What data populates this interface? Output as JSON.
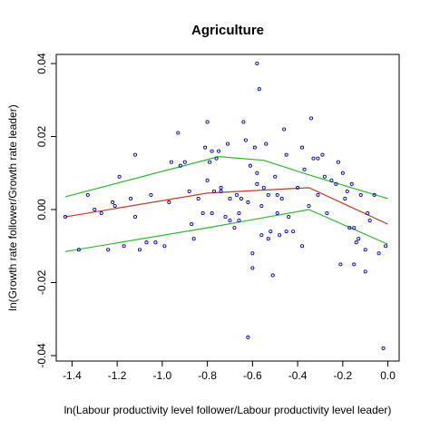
{
  "chart_data": {
    "type": "scatter",
    "title": "Agriculture",
    "xlabel": "ln(Labour productivity level follower/Labour productivity level leader)",
    "ylabel": "ln(Growth rate follower/Growth rate leader)",
    "xlim": [
      -1.47,
      0.05
    ],
    "ylim": [
      -0.0415,
      0.0425
    ],
    "x_ticks": [
      -1.4,
      -1.2,
      -1.0,
      -0.8,
      -0.6,
      -0.4,
      -0.2,
      0.0
    ],
    "x_tick_labels": [
      "-1.4",
      "-1.2",
      "-1.0",
      "-0.8",
      "-0.6",
      "-0.4",
      "-0.2",
      "0.0"
    ],
    "y_ticks": [
      -0.04,
      -0.02,
      0.0,
      0.02,
      0.04
    ],
    "y_tick_labels": [
      "-0.04",
      "-0.02",
      "0.00",
      "0.02",
      "0.04"
    ],
    "grid": false,
    "colors": {
      "points": "#0000cc",
      "fit": "#c0392b",
      "bounds": "#2eb82e",
      "frame": "#000000"
    },
    "points": {
      "x": [
        -1.43,
        -1.37,
        -1.33,
        -1.3,
        -1.27,
        -1.24,
        -1.22,
        -1.19,
        -1.17,
        -1.14,
        -1.12,
        -1.1,
        -1.07,
        -1.05,
        -1.03,
        -0.99,
        -0.97,
        -0.93,
        -0.92,
        -0.9,
        -0.88,
        -0.86,
        -0.84,
        -0.82,
        -0.81,
        -0.8,
        -0.79,
        -0.78,
        -0.77,
        -0.76,
        -0.75,
        -0.74,
        -0.72,
        -0.71,
        -0.7,
        -0.68,
        -0.67,
        -0.66,
        -0.65,
        -0.64,
        -0.63,
        -0.62,
        -0.61,
        -0.6,
        -0.59,
        -0.58,
        -0.57,
        -0.56,
        -0.55,
        -0.54,
        -0.53,
        -0.52,
        -0.51,
        -0.5,
        -0.49,
        -0.48,
        -0.47,
        -0.46,
        -0.45,
        -0.44,
        -0.42,
        -0.4,
        -0.38,
        -0.37,
        -0.35,
        -0.34,
        -0.33,
        -0.31,
        -0.29,
        -0.27,
        -0.25,
        -0.23,
        -0.22,
        -0.21,
        -0.2,
        -0.19,
        -0.18,
        -0.17,
        -0.16,
        -0.15,
        -0.14,
        -0.13,
        -0.12,
        -0.1,
        -0.09,
        -0.08,
        -0.06,
        -0.04,
        -0.02,
        -0.01,
        -0.8,
        -0.78,
        -0.74,
        -0.7,
        -0.6,
        -0.58,
        -0.53,
        -0.49,
        -0.45,
        -0.38,
        -0.31,
        -0.28,
        -0.15,
        -0.1,
        -1.21,
        -1.12,
        -0.96,
        -0.87,
        -0.66,
        -0.62,
        -0.58,
        -0.56
      ],
      "y": [
        -0.002,
        -0.011,
        0.004,
        0.0,
        -0.001,
        -0.011,
        0.002,
        0.009,
        -0.01,
        0.003,
        0.015,
        -0.011,
        -0.009,
        0.004,
        -0.009,
        -0.01,
        0.002,
        0.021,
        0.012,
        0.013,
        0.005,
        -0.008,
        0.003,
        -0.001,
        0.017,
        0.024,
        0.013,
        0.016,
        0.005,
        0.014,
        0.016,
        0.005,
        -0.002,
        0.018,
        0.003,
        -0.005,
        0.004,
        -0.003,
        0.003,
        0.024,
        0.019,
        0.002,
        0.012,
        -0.012,
        0.017,
        0.04,
        0.033,
        0.001,
        0.006,
        0.018,
        0.004,
        -0.006,
        -0.018,
        0.009,
        -0.001,
        -0.007,
        0.003,
        0.022,
        0.015,
        -0.002,
        -0.006,
        0.006,
        0.017,
        0.011,
        0.001,
        0.025,
        0.014,
        0.014,
        0.015,
        -0.001,
        0.008,
        0.007,
        0.013,
        -0.015,
        0.01,
        0.003,
        0.005,
        -0.005,
        0.007,
        -0.005,
        -0.009,
        -0.008,
        0.004,
        -0.017,
        -0.001,
        -0.003,
        0.004,
        -0.012,
        -0.038,
        -0.01,
        0.008,
        -0.001,
        0.006,
        -0.003,
        -0.016,
        0.01,
        -0.008,
        0.004,
        -0.006,
        -0.01,
        0.004,
        0.009,
        -0.015,
        -0.011,
        0.001,
        -0.002,
        0.013,
        -0.004,
        -0.001,
        -0.035,
        0.007,
        -0.007
      ]
    },
    "fit_line": {
      "x": [
        -1.43,
        -0.8,
        -0.35,
        0.0
      ],
      "y": [
        -0.002,
        0.0045,
        0.006,
        -0.004
      ]
    },
    "upper_band": {
      "x": [
        -1.43,
        -0.75,
        -0.55,
        -0.35,
        0.0
      ],
      "y": [
        0.0035,
        0.0145,
        0.0135,
        0.0095,
        0.003
      ]
    },
    "lower_band": {
      "x": [
        -1.43,
        -0.8,
        -0.35,
        0.0
      ],
      "y": [
        -0.0115,
        -0.005,
        0.0,
        -0.0095
      ]
    }
  }
}
